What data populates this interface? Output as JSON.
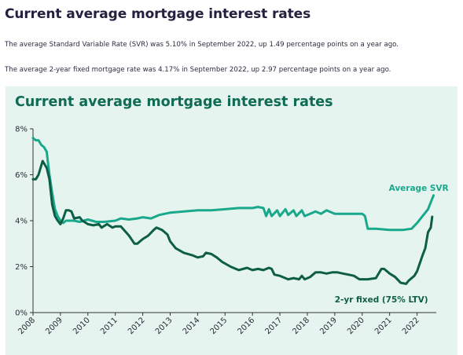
{
  "page": {
    "title": "Current average mortgage interest rates",
    "paragraph_1": "The average Standard Variable Rate (SVR) was 5.10% in September 2022, up 1.49 percentage points on a year ago.",
    "paragraph_2": "The average 2-year fixed mortgage rate was 4.17% in September 2022, up 2.97 percentage points on a year ago."
  },
  "colors": {
    "card_bg": "#e5f4ee",
    "title_green": "#0f6b52",
    "svr": "#1aa88c",
    "fixed": "#0d5e45",
    "axis": "#333333"
  },
  "chart_data": {
    "type": "line",
    "title": "Current average mortgage interest rates",
    "xlabel": "",
    "ylabel": "",
    "xlim": [
      2008.0,
      2022.7
    ],
    "ylim": [
      0,
      8
    ],
    "x_ticks": [
      "2008",
      "2009",
      "2010",
      "2011",
      "2012",
      "2013",
      "2014",
      "2015",
      "2016",
      "2017",
      "2018",
      "2019",
      "2020",
      "2021",
      "2022"
    ],
    "y_ticks": [
      "0%",
      "2%",
      "4%",
      "6%",
      "8%"
    ],
    "grid": false,
    "series": [
      {
        "name": "Average SVR",
        "color": "#1aa88c",
        "points": [
          [
            2008.0,
            7.6
          ],
          [
            2008.1,
            7.5
          ],
          [
            2008.2,
            7.5
          ],
          [
            2008.3,
            7.3
          ],
          [
            2008.4,
            7.2
          ],
          [
            2008.5,
            7.0
          ],
          [
            2008.6,
            6.0
          ],
          [
            2008.7,
            5.2
          ],
          [
            2008.8,
            4.5
          ],
          [
            2008.9,
            4.2
          ],
          [
            2009.0,
            4.0
          ],
          [
            2009.1,
            3.9
          ],
          [
            2009.2,
            4.0
          ],
          [
            2009.3,
            4.0
          ],
          [
            2009.5,
            4.0
          ],
          [
            2009.7,
            3.95
          ],
          [
            2010.0,
            4.05
          ],
          [
            2010.3,
            3.95
          ],
          [
            2010.6,
            3.95
          ],
          [
            2011.0,
            4.0
          ],
          [
            2011.2,
            4.1
          ],
          [
            2011.5,
            4.05
          ],
          [
            2011.8,
            4.1
          ],
          [
            2012.0,
            4.15
          ],
          [
            2012.3,
            4.1
          ],
          [
            2012.6,
            4.25
          ],
          [
            2013.0,
            4.35
          ],
          [
            2013.5,
            4.4
          ],
          [
            2014.0,
            4.45
          ],
          [
            2014.5,
            4.45
          ],
          [
            2015.0,
            4.5
          ],
          [
            2015.5,
            4.55
          ],
          [
            2016.0,
            4.55
          ],
          [
            2016.2,
            4.6
          ],
          [
            2016.4,
            4.55
          ],
          [
            2016.5,
            4.2
          ],
          [
            2016.6,
            4.5
          ],
          [
            2016.7,
            4.2
          ],
          [
            2016.9,
            4.45
          ],
          [
            2017.0,
            4.2
          ],
          [
            2017.2,
            4.5
          ],
          [
            2017.3,
            4.25
          ],
          [
            2017.5,
            4.45
          ],
          [
            2017.6,
            4.2
          ],
          [
            2017.8,
            4.45
          ],
          [
            2017.9,
            4.2
          ],
          [
            2018.1,
            4.3
          ],
          [
            2018.3,
            4.4
          ],
          [
            2018.5,
            4.3
          ],
          [
            2018.7,
            4.45
          ],
          [
            2019.0,
            4.3
          ],
          [
            2019.5,
            4.3
          ],
          [
            2020.0,
            4.3
          ],
          [
            2020.1,
            4.2
          ],
          [
            2020.2,
            3.65
          ],
          [
            2020.5,
            3.65
          ],
          [
            2021.0,
            3.6
          ],
          [
            2021.5,
            3.6
          ],
          [
            2021.8,
            3.65
          ],
          [
            2022.0,
            3.9
          ],
          [
            2022.2,
            4.2
          ],
          [
            2022.4,
            4.5
          ],
          [
            2022.6,
            5.1
          ]
        ]
      },
      {
        "name": "2-yr fixed (75% LTV)",
        "color": "#0d5e45",
        "points": [
          [
            2008.0,
            5.8
          ],
          [
            2008.1,
            5.8
          ],
          [
            2008.2,
            6.0
          ],
          [
            2008.35,
            6.6
          ],
          [
            2008.5,
            6.3
          ],
          [
            2008.6,
            5.8
          ],
          [
            2008.7,
            4.7
          ],
          [
            2008.8,
            4.2
          ],
          [
            2008.9,
            4.0
          ],
          [
            2009.0,
            3.85
          ],
          [
            2009.1,
            4.1
          ],
          [
            2009.2,
            4.45
          ],
          [
            2009.3,
            4.45
          ],
          [
            2009.4,
            4.4
          ],
          [
            2009.5,
            4.1
          ],
          [
            2009.7,
            4.15
          ],
          [
            2009.8,
            4.0
          ],
          [
            2010.0,
            3.85
          ],
          [
            2010.2,
            3.8
          ],
          [
            2010.4,
            3.85
          ],
          [
            2010.5,
            3.7
          ],
          [
            2010.7,
            3.85
          ],
          [
            2010.9,
            3.7
          ],
          [
            2011.0,
            3.75
          ],
          [
            2011.2,
            3.75
          ],
          [
            2011.5,
            3.35
          ],
          [
            2011.7,
            3.0
          ],
          [
            2011.8,
            3.0
          ],
          [
            2012.0,
            3.2
          ],
          [
            2012.2,
            3.35
          ],
          [
            2012.4,
            3.6
          ],
          [
            2012.5,
            3.7
          ],
          [
            2012.7,
            3.6
          ],
          [
            2012.9,
            3.4
          ],
          [
            2013.0,
            3.1
          ],
          [
            2013.2,
            2.8
          ],
          [
            2013.5,
            2.6
          ],
          [
            2013.8,
            2.5
          ],
          [
            2014.0,
            2.4
          ],
          [
            2014.2,
            2.45
          ],
          [
            2014.3,
            2.6
          ],
          [
            2014.5,
            2.55
          ],
          [
            2014.7,
            2.4
          ],
          [
            2014.9,
            2.2
          ],
          [
            2015.2,
            2.0
          ],
          [
            2015.5,
            1.85
          ],
          [
            2015.8,
            1.95
          ],
          [
            2016.0,
            1.85
          ],
          [
            2016.2,
            1.9
          ],
          [
            2016.4,
            1.85
          ],
          [
            2016.6,
            1.95
          ],
          [
            2016.7,
            1.9
          ],
          [
            2016.8,
            1.65
          ],
          [
            2017.0,
            1.6
          ],
          [
            2017.3,
            1.45
          ],
          [
            2017.5,
            1.5
          ],
          [
            2017.7,
            1.45
          ],
          [
            2017.8,
            1.6
          ],
          [
            2017.9,
            1.45
          ],
          [
            2018.1,
            1.55
          ],
          [
            2018.3,
            1.75
          ],
          [
            2018.5,
            1.75
          ],
          [
            2018.7,
            1.7
          ],
          [
            2018.9,
            1.75
          ],
          [
            2019.1,
            1.75
          ],
          [
            2019.3,
            1.7
          ],
          [
            2019.5,
            1.65
          ],
          [
            2019.7,
            1.6
          ],
          [
            2019.9,
            1.45
          ],
          [
            2020.2,
            1.45
          ],
          [
            2020.5,
            1.5
          ],
          [
            2020.7,
            1.9
          ],
          [
            2020.8,
            1.9
          ],
          [
            2021.0,
            1.7
          ],
          [
            2021.2,
            1.55
          ],
          [
            2021.4,
            1.3
          ],
          [
            2021.6,
            1.25
          ],
          [
            2021.7,
            1.4
          ],
          [
            2021.9,
            1.6
          ],
          [
            2022.0,
            1.8
          ],
          [
            2022.2,
            2.5
          ],
          [
            2022.3,
            2.8
          ],
          [
            2022.4,
            3.5
          ],
          [
            2022.5,
            3.7
          ],
          [
            2022.55,
            4.17
          ]
        ]
      }
    ]
  }
}
